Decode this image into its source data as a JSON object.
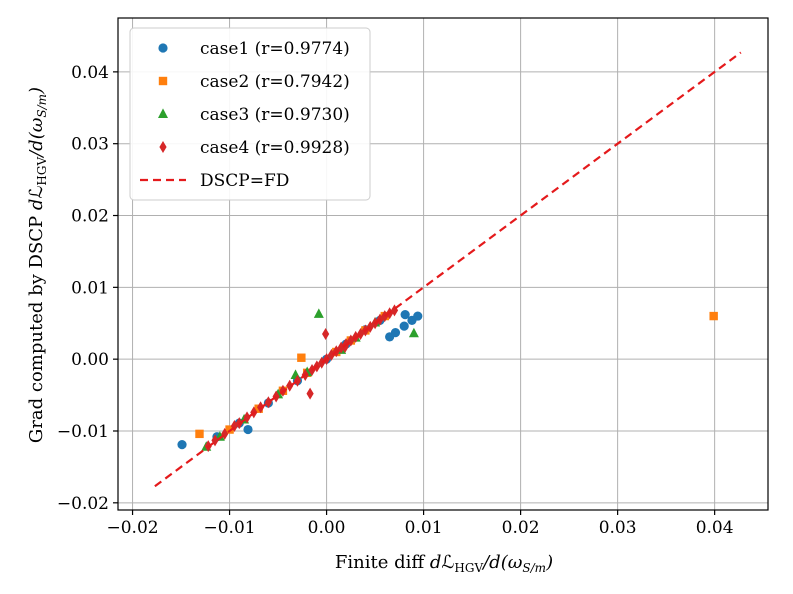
{
  "chart_data": {
    "type": "scatter",
    "title": "",
    "xlabel": {
      "prefix": "Finite diff ",
      "d1": "d",
      "L": "ℒ",
      "sub": "HGV",
      "mid": "/d(ω",
      "sub2": "S/m",
      "end": ")"
    },
    "ylabel": {
      "prefix": "Grad computed by DSCP ",
      "d1": "d",
      "L": "ℒ",
      "sub": "HGV",
      "mid": "/d(ω",
      "sub2": "S/m",
      "end": ")"
    },
    "xlim": [
      -0.0215,
      0.0455
    ],
    "ylim": [
      -0.021,
      0.0475
    ],
    "xticks": [
      -0.02,
      -0.01,
      0.0,
      0.01,
      0.02,
      0.03,
      0.04
    ],
    "xtick_labels": [
      "−0.02",
      "−0.01",
      "0.00",
      "0.01",
      "0.02",
      "0.03",
      "0.04"
    ],
    "yticks": [
      -0.02,
      -0.01,
      0.0,
      0.01,
      0.02,
      0.03,
      0.04
    ],
    "ytick_labels": [
      "−0.02",
      "−0.01",
      "0.00",
      "0.01",
      "0.02",
      "0.03",
      "0.04"
    ],
    "grid": true,
    "legend_position": "top-left",
    "series": [
      {
        "name": "case1 (r=0.9774)",
        "marker": "circle",
        "color": "#1f77b4",
        "points": [
          [
            -0.0149,
            -0.0119
          ],
          [
            -0.0081,
            -0.0098
          ],
          [
            -0.0113,
            -0.0108
          ],
          [
            -0.009,
            -0.0089
          ],
          [
            -0.006,
            -0.0061
          ],
          [
            -0.003,
            -0.003
          ],
          [
            0.0,
            0.0
          ],
          [
            0.002,
            0.0021
          ],
          [
            0.004,
            0.0041
          ],
          [
            0.0055,
            0.0054
          ],
          [
            0.0065,
            0.0031
          ],
          [
            0.0071,
            0.0037
          ],
          [
            0.008,
            0.0046
          ],
          [
            0.0081,
            0.0062
          ],
          [
            0.0088,
            0.0054
          ],
          [
            0.0094,
            0.006
          ]
        ]
      },
      {
        "name": "case2 (r=0.7942)",
        "marker": "square",
        "color": "#ff7f0e",
        "points": [
          [
            -0.0131,
            -0.0104
          ],
          [
            -0.0026,
            0.0002
          ],
          [
            0.0399,
            0.006
          ],
          [
            -0.01,
            -0.0098
          ],
          [
            -0.007,
            -0.0069
          ],
          [
            -0.0045,
            -0.0044
          ],
          [
            -0.002,
            -0.0019
          ],
          [
            0.001,
            0.001
          ],
          [
            0.0025,
            0.0026
          ],
          [
            0.004,
            0.004
          ],
          [
            0.006,
            0.006
          ]
        ]
      },
      {
        "name": "case3 (r=0.9730)",
        "marker": "triangle",
        "color": "#2ca02c",
        "points": [
          [
            -0.0124,
            -0.0122
          ],
          [
            -0.0008,
            0.0063
          ],
          [
            0.009,
            0.0036
          ],
          [
            -0.0032,
            -0.0022
          ],
          [
            -0.011,
            -0.0108
          ],
          [
            -0.0085,
            -0.0084
          ],
          [
            -0.005,
            -0.0049
          ],
          [
            -0.002,
            -0.0018
          ],
          [
            0.0015,
            0.0013
          ],
          [
            0.003,
            0.003
          ],
          [
            0.005,
            0.0051
          ]
        ]
      },
      {
        "name": "case4 (r=0.9928)",
        "marker": "diamond",
        "color": "#d62728",
        "points": [
          [
            -0.0122,
            -0.0121
          ],
          [
            -0.0115,
            -0.0113
          ],
          [
            -0.0105,
            -0.0104
          ],
          [
            -0.0095,
            -0.0093
          ],
          [
            -0.009,
            -0.0089
          ],
          [
            -0.0082,
            -0.0081
          ],
          [
            -0.0075,
            -0.0074
          ],
          [
            -0.0068,
            -0.0067
          ],
          [
            -0.006,
            -0.006
          ],
          [
            -0.0052,
            -0.0052
          ],
          [
            -0.0045,
            -0.0044
          ],
          [
            -0.0038,
            -0.0037
          ],
          [
            -0.003,
            -0.003
          ],
          [
            -0.0022,
            -0.0022
          ],
          [
            -0.0015,
            -0.0015
          ],
          [
            -0.001,
            -0.001
          ],
          [
            -0.0005,
            -0.0005
          ],
          [
            0.0,
            0.0
          ],
          [
            0.0005,
            0.0006
          ],
          [
            0.001,
            0.0011
          ],
          [
            0.0015,
            0.0016
          ],
          [
            0.002,
            0.0021
          ],
          [
            0.0025,
            0.0026
          ],
          [
            0.003,
            0.0031
          ],
          [
            0.0035,
            0.0035
          ],
          [
            0.004,
            0.004
          ],
          [
            0.0045,
            0.0045
          ],
          [
            0.005,
            0.005
          ],
          [
            0.0055,
            0.0055
          ],
          [
            0.006,
            0.006
          ],
          [
            0.0065,
            0.0064
          ],
          [
            0.007,
            0.0068
          ],
          [
            -0.0017,
            -0.0048
          ],
          [
            -0.0001,
            0.0035
          ],
          [
            0.0019,
            0.0017
          ]
        ]
      }
    ],
    "reference_line": {
      "name": "DSCP=FD",
      "color": "#e41a1c",
      "style": "dashed",
      "x": [
        -0.0177,
        0.0427
      ],
      "y": [
        -0.0177,
        0.0427
      ]
    }
  }
}
